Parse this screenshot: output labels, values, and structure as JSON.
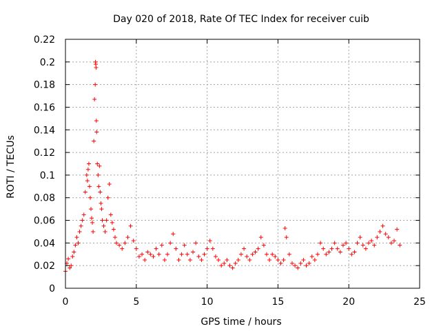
{
  "chart_data": {
    "type": "scatter",
    "title": "Day 020 of 2018, Rate Of TEC Index for receiver cuib",
    "xlabel": "GPS time / hours",
    "ylabel": "ROTI / TECUs",
    "xlim": [
      0,
      25
    ],
    "ylim": [
      0,
      0.22
    ],
    "x_ticks": [
      0,
      5,
      10,
      15,
      20,
      25
    ],
    "y_ticks": [
      0,
      0.02,
      0.04,
      0.06,
      0.08,
      0.1,
      0.12,
      0.14,
      0.16,
      0.18,
      0.2,
      0.22
    ],
    "x_tick_labels": [
      "0",
      "5",
      "10",
      "15",
      "20",
      "25"
    ],
    "y_tick_labels": [
      "0",
      "0.02",
      "0.04",
      "0.06",
      "0.08",
      "0.1",
      "0.12",
      "0.14",
      "0.16",
      "0.18",
      "0.2",
      "0.22"
    ],
    "grid": true,
    "marker": "+",
    "color": "#ff0000",
    "series": [
      {
        "name": "ROTI",
        "x": [
          0.0,
          0.1,
          0.2,
          0.3,
          0.4,
          0.5,
          0.6,
          0.7,
          0.8,
          0.9,
          1.0,
          1.1,
          1.2,
          1.3,
          1.4,
          1.5,
          1.55,
          1.6,
          1.65,
          1.7,
          1.75,
          1.8,
          1.85,
          1.9,
          1.95,
          2.0,
          2.05,
          2.1,
          2.12,
          2.14,
          2.16,
          2.18,
          2.2,
          2.25,
          2.3,
          2.35,
          2.4,
          2.45,
          2.5,
          2.55,
          2.6,
          2.7,
          2.8,
          2.9,
          3.0,
          3.1,
          3.2,
          3.3,
          3.4,
          3.5,
          3.6,
          3.8,
          4.0,
          4.2,
          4.4,
          4.6,
          4.8,
          5.0,
          5.2,
          5.4,
          5.6,
          5.8,
          6.0,
          6.2,
          6.4,
          6.6,
          6.8,
          7.0,
          7.2,
          7.4,
          7.6,
          7.8,
          8.0,
          8.2,
          8.4,
          8.6,
          8.8,
          9.0,
          9.2,
          9.4,
          9.6,
          9.8,
          10.0,
          10.2,
          10.4,
          10.6,
          10.8,
          11.0,
          11.2,
          11.4,
          11.6,
          11.8,
          12.0,
          12.2,
          12.4,
          12.6,
          12.8,
          13.0,
          13.2,
          13.4,
          13.6,
          13.8,
          14.0,
          14.2,
          14.4,
          14.6,
          14.8,
          15.0,
          15.2,
          15.4,
          15.5,
          15.6,
          15.8,
          16.0,
          16.2,
          16.4,
          16.6,
          16.8,
          17.0,
          17.2,
          17.4,
          17.6,
          17.8,
          18.0,
          18.2,
          18.4,
          18.6,
          18.8,
          19.0,
          19.2,
          19.4,
          19.6,
          19.8,
          20.0,
          20.2,
          20.4,
          20.6,
          20.8,
          21.0,
          21.2,
          21.4,
          21.6,
          21.8,
          22.0,
          22.2,
          22.4,
          22.6,
          22.8,
          23.0,
          23.2,
          23.4,
          23.6
        ],
        "y": [
          0.015,
          0.022,
          0.026,
          0.018,
          0.02,
          0.028,
          0.032,
          0.038,
          0.045,
          0.04,
          0.05,
          0.055,
          0.06,
          0.065,
          0.085,
          0.1,
          0.095,
          0.105,
          0.11,
          0.09,
          0.08,
          0.07,
          0.062,
          0.058,
          0.05,
          0.13,
          0.167,
          0.18,
          0.2,
          0.198,
          0.195,
          0.148,
          0.138,
          0.11,
          0.1,
          0.09,
          0.108,
          0.085,
          0.075,
          0.07,
          0.06,
          0.055,
          0.05,
          0.06,
          0.08,
          0.092,
          0.065,
          0.058,
          0.052,
          0.045,
          0.04,
          0.038,
          0.035,
          0.04,
          0.045,
          0.055,
          0.042,
          0.035,
          0.028,
          0.03,
          0.025,
          0.032,
          0.03,
          0.028,
          0.035,
          0.03,
          0.038,
          0.025,
          0.03,
          0.04,
          0.048,
          0.035,
          0.025,
          0.03,
          0.038,
          0.03,
          0.025,
          0.032,
          0.04,
          0.028,
          0.025,
          0.03,
          0.035,
          0.042,
          0.035,
          0.028,
          0.025,
          0.02,
          0.022,
          0.025,
          0.02,
          0.018,
          0.022,
          0.025,
          0.03,
          0.035,
          0.028,
          0.025,
          0.03,
          0.032,
          0.035,
          0.045,
          0.038,
          0.03,
          0.025,
          0.03,
          0.028,
          0.025,
          0.022,
          0.025,
          0.053,
          0.045,
          0.03,
          0.022,
          0.02,
          0.018,
          0.022,
          0.025,
          0.02,
          0.022,
          0.028,
          0.025,
          0.03,
          0.04,
          0.035,
          0.03,
          0.032,
          0.035,
          0.04,
          0.035,
          0.032,
          0.038,
          0.04,
          0.035,
          0.03,
          0.032,
          0.04,
          0.045,
          0.038,
          0.035,
          0.04,
          0.042,
          0.038,
          0.045,
          0.05,
          0.055,
          0.048,
          0.045,
          0.04,
          0.042,
          0.052,
          0.038
        ]
      }
    ]
  }
}
